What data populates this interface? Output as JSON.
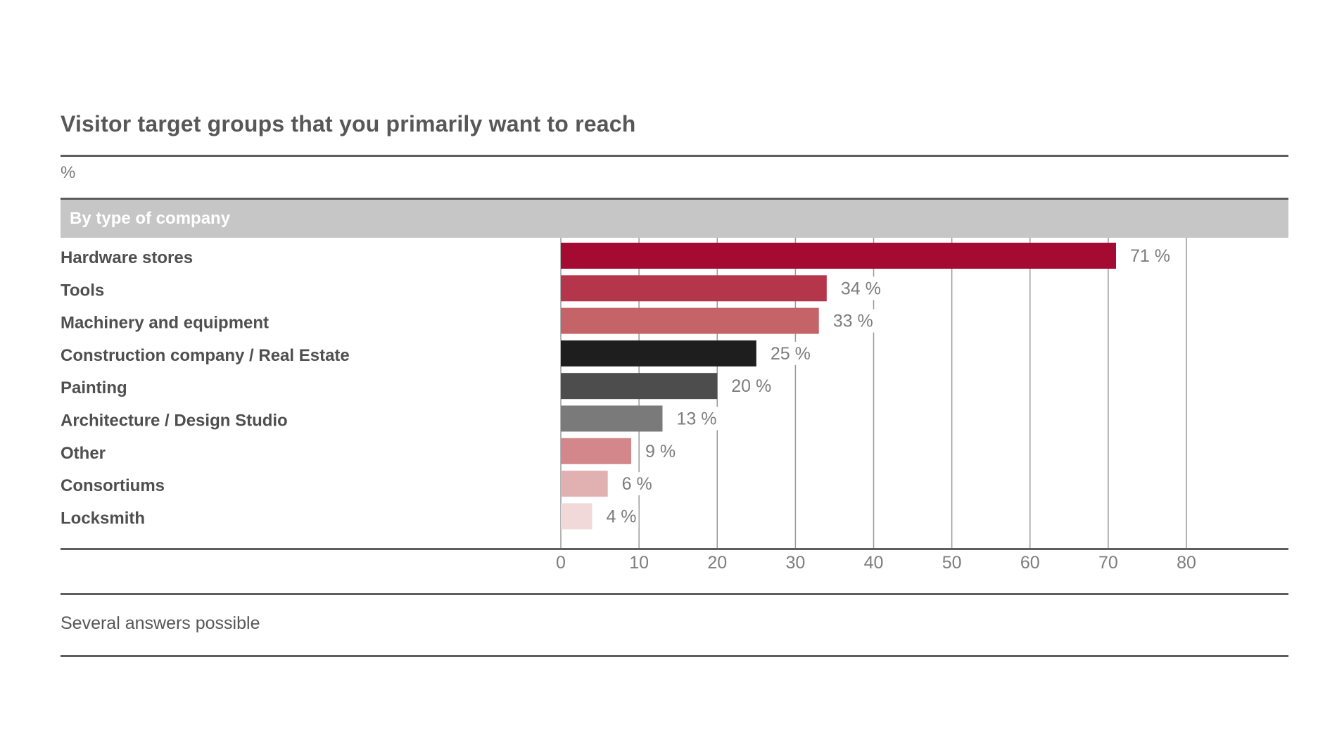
{
  "header": {
    "title": "Visitor target groups that you primarily want to reach",
    "unit": "%"
  },
  "section": {
    "label": "By type of company"
  },
  "footer": {
    "note": "Several answers possible"
  },
  "chart_data": {
    "type": "bar",
    "orientation": "horizontal",
    "categories": [
      "Hardware stores",
      "Tools",
      "Machinery and equipment",
      "Construction company / Real Estate",
      "Painting",
      "Architecture / Design Studio",
      "Other",
      "Consortiums",
      "Locksmith"
    ],
    "values": [
      71,
      34,
      33,
      25,
      20,
      13,
      9,
      6,
      4
    ],
    "value_labels": [
      "71 %",
      "34 %",
      "33 %",
      "25 %",
      "20 %",
      "13 %",
      "9 %",
      "6 %",
      "4 %"
    ],
    "colors": [
      "#a50a32",
      "#b5364b",
      "#c46368",
      "#1e1e1e",
      "#4d4d4d",
      "#7a7a7a",
      "#d4878a",
      "#e1b1b2",
      "#f1d9da"
    ],
    "x_ticks": [
      0,
      10,
      20,
      30,
      40,
      50,
      60,
      70,
      80
    ],
    "xlim": [
      0,
      80
    ],
    "grid": true,
    "legend": "none"
  }
}
